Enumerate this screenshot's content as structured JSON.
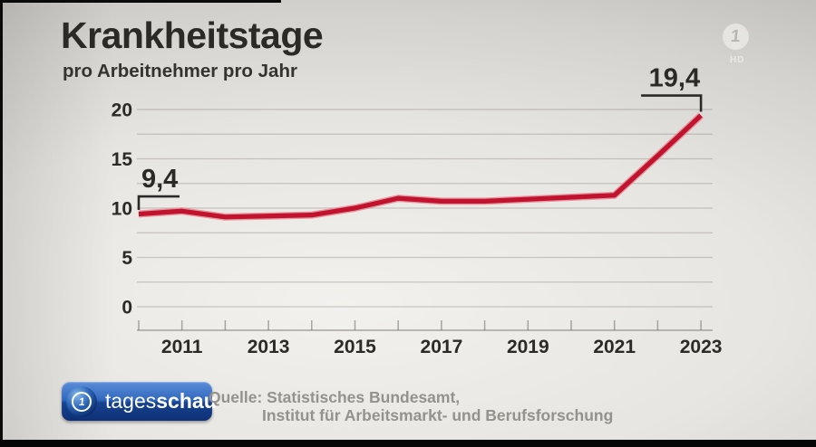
{
  "header": {
    "title": "Krankheitstage",
    "subtitle": "pro Arbeitnehmer pro Jahr"
  },
  "channel_logo": {
    "one_glyph": "1",
    "hd_label": "HD"
  },
  "footer": {
    "brand": {
      "one_glyph": "1",
      "part1": "tages",
      "part2": "schau"
    },
    "source_line1": "Quelle: Statistisches Bundesamt,",
    "source_line2": "Institut für Arbeitsmarkt- und Berufsforschung"
  },
  "chart_data": {
    "type": "line",
    "title": "Krankheitstage",
    "subtitle": "pro Arbeitnehmer pro Jahr",
    "series_name": "Krankheitstage pro Arbeitnehmer pro Jahr",
    "x": [
      2010,
      2011,
      2012,
      2013,
      2014,
      2015,
      2016,
      2017,
      2018,
      2019,
      2020,
      2021,
      2022,
      2023
    ],
    "values": [
      9.4,
      9.7,
      9.1,
      9.2,
      9.3,
      10.0,
      11.0,
      10.7,
      10.7,
      10.9,
      11.1,
      11.3,
      15.3,
      19.4
    ],
    "xlim": [
      2010,
      2023
    ],
    "ylim": [
      0,
      20
    ],
    "grid": true,
    "grid_step": 2.5,
    "yticks": {
      "values": [
        0,
        5,
        10,
        15,
        20
      ],
      "labels": [
        "0",
        "5",
        "10",
        "15",
        "20"
      ]
    },
    "xticks": {
      "all": [
        2010,
        2011,
        2012,
        2013,
        2014,
        2015,
        2016,
        2017,
        2018,
        2019,
        2020,
        2021,
        2022,
        2023
      ],
      "labeled": [
        "2011",
        "2013",
        "2015",
        "2017",
        "2019",
        "2021",
        "2023"
      ]
    },
    "annotations": [
      {
        "x": 2010,
        "y": 9.4,
        "label": "9,4",
        "side": "left"
      },
      {
        "x": 2023,
        "y": 19.4,
        "label": "19,4",
        "side": "right"
      }
    ],
    "line_color": "#c1122e",
    "line_halo_color": "#e4838f",
    "grid_color": "rgba(105,103,98,0.30)",
    "axis_color": "rgba(105,103,98,0.55)",
    "annotation_color": "#2b2a28",
    "legend": "none"
  }
}
